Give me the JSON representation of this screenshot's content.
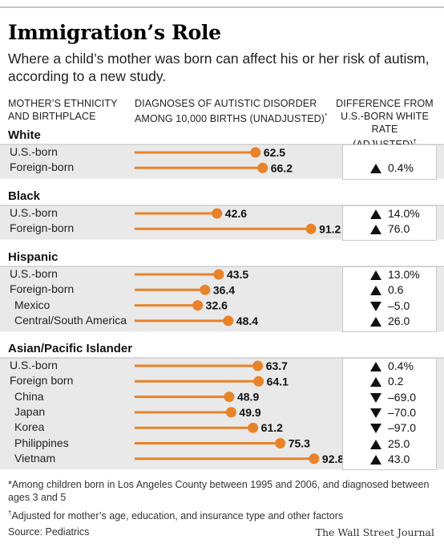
{
  "title": "Immigration’s Role",
  "subtitle": "Where a child’s mother was born can affect his or her risk of autism, according to a new study.",
  "headers": {
    "col1_line1": "MOTHER’S ETHNICITY",
    "col1_line2": "AND BIRTHPLACE",
    "col2_line1": "DIAGNOSES OF AUTISTIC DISORDER",
    "col2_line2": "AMONG 10,000 BIRTHS (UNADJUSTED)",
    "col2_mark": "*",
    "col3_line1": "DIFFERENCE FROM",
    "col3_line2": "U.S.-BORN WHITE RATE",
    "col3_line3": "(ADJUSTED)",
    "col3_mark": "†"
  },
  "chart_data": {
    "type": "bar",
    "title": "Immigration’s Role",
    "xlabel": "DIAGNOSES OF AUTISTIC DISORDER AMONG 10,000 BIRTHS (UNADJUSTED)",
    "bar_color": "#e8832a",
    "xlim": [
      0,
      95
    ],
    "groups": [
      {
        "name": "White",
        "rows": [
          {
            "label": "U.S.-born",
            "value": 62.5,
            "value_text": "62.5",
            "indent": false
          },
          {
            "label": "Foreign-born",
            "value": 66.2,
            "value_text": "66.2",
            "indent": false,
            "diff": "0.4%",
            "dir": "up"
          }
        ]
      },
      {
        "name": "Black",
        "rows": [
          {
            "label": "U.S.-born",
            "value": 42.6,
            "value_text": "42.6",
            "indent": false,
            "diff": "14.0%",
            "dir": "up"
          },
          {
            "label": "Foreign-born",
            "value": 91.2,
            "value_text": "91.2",
            "indent": false,
            "diff": "76.0",
            "dir": "up"
          }
        ]
      },
      {
        "name": "Hispanic",
        "rows": [
          {
            "label": "U.S.-born",
            "value": 43.5,
            "value_text": "43.5",
            "indent": false,
            "diff": "13.0%",
            "dir": "up"
          },
          {
            "label": "Foreign-born",
            "value": 36.4,
            "value_text": "36.4",
            "indent": false,
            "diff": "0.6",
            "dir": "up"
          },
          {
            "label": "Mexico",
            "value": 32.6,
            "value_text": "32.6",
            "indent": true,
            "diff": "–5.0",
            "dir": "down"
          },
          {
            "label": "Central/South America",
            "value": 48.4,
            "value_text": "48.4",
            "indent": true,
            "diff": "26.0",
            "dir": "up"
          }
        ]
      },
      {
        "name": "Asian/Pacific Islander",
        "rows": [
          {
            "label": "U.S.-born",
            "value": 63.7,
            "value_text": "63.7",
            "indent": false,
            "diff": "0.4%",
            "dir": "up"
          },
          {
            "label": "Foreign born",
            "value": 64.1,
            "value_text": "64.1",
            "indent": false,
            "diff": "0.2",
            "dir": "up"
          },
          {
            "label": "China",
            "value": 48.9,
            "value_text": "48.9",
            "indent": true,
            "diff": "–69.0",
            "dir": "down"
          },
          {
            "label": "Japan",
            "value": 49.9,
            "value_text": "49.9",
            "indent": true,
            "diff": "–70.0",
            "dir": "down"
          },
          {
            "label": "Korea",
            "value": 61.2,
            "value_text": "61.2",
            "indent": true,
            "diff": "–97.0",
            "dir": "down"
          },
          {
            "label": "Philippines",
            "value": 75.3,
            "value_text": "75.3",
            "indent": true,
            "diff": "25.0",
            "dir": "up"
          },
          {
            "label": "Vietnam",
            "value": 92.8,
            "value_text": "92.8",
            "indent": true,
            "diff": "43.0",
            "dir": "up"
          }
        ]
      }
    ]
  },
  "annotation_color": "#e0202a",
  "footnote1_mark": "*",
  "footnote1": "Among children born in Los Angeles County between 1995 and 2006, and diagnosed between ages 3 and 5",
  "footnote2_mark": "†",
  "footnote2": "Adjusted for mother’s age, education, and insurance type and other factors",
  "source": "Source: Pediatrics",
  "credit": "The Wall Street Journal"
}
